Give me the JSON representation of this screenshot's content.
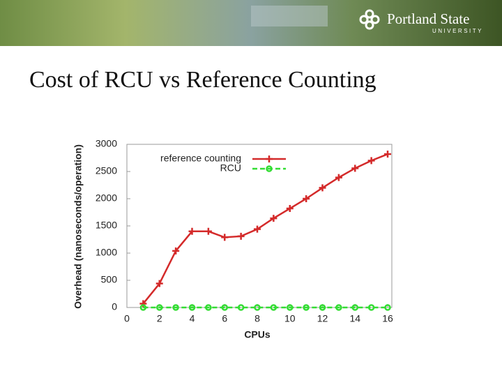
{
  "header": {
    "logo_name": "Portland State",
    "logo_sub": "UNIVERSITY"
  },
  "slide": {
    "title": "Cost of RCU vs Reference Counting"
  },
  "chart_data": {
    "type": "line",
    "x": [
      1,
      2,
      3,
      4,
      5,
      6,
      7,
      8,
      9,
      10,
      11,
      12,
      13,
      14,
      15,
      16
    ],
    "series": [
      {
        "name": "reference counting",
        "color": "#d42a2a",
        "marker": "plus",
        "dashed": false,
        "values": [
          70,
          440,
          1040,
          1400,
          1400,
          1290,
          1310,
          1440,
          1640,
          1820,
          2000,
          2200,
          2390,
          2560,
          2700,
          2820
        ]
      },
      {
        "name": "RCU",
        "color": "#33dd33",
        "marker": "circle",
        "dashed": true,
        "values": [
          0,
          0,
          0,
          0,
          0,
          0,
          0,
          0,
          0,
          0,
          0,
          0,
          0,
          0,
          0,
          0
        ]
      }
    ],
    "xlabel": "CPUs",
    "ylabel": "Overhead (nanoseconds/operation)",
    "xlim": [
      0,
      16
    ],
    "xticks": [
      0,
      2,
      4,
      6,
      8,
      10,
      12,
      14,
      16
    ],
    "ylim": [
      0,
      3000
    ],
    "yticks": [
      0,
      500,
      1000,
      1500,
      2000,
      2500,
      3000
    ],
    "grid": false,
    "legend": "top"
  }
}
